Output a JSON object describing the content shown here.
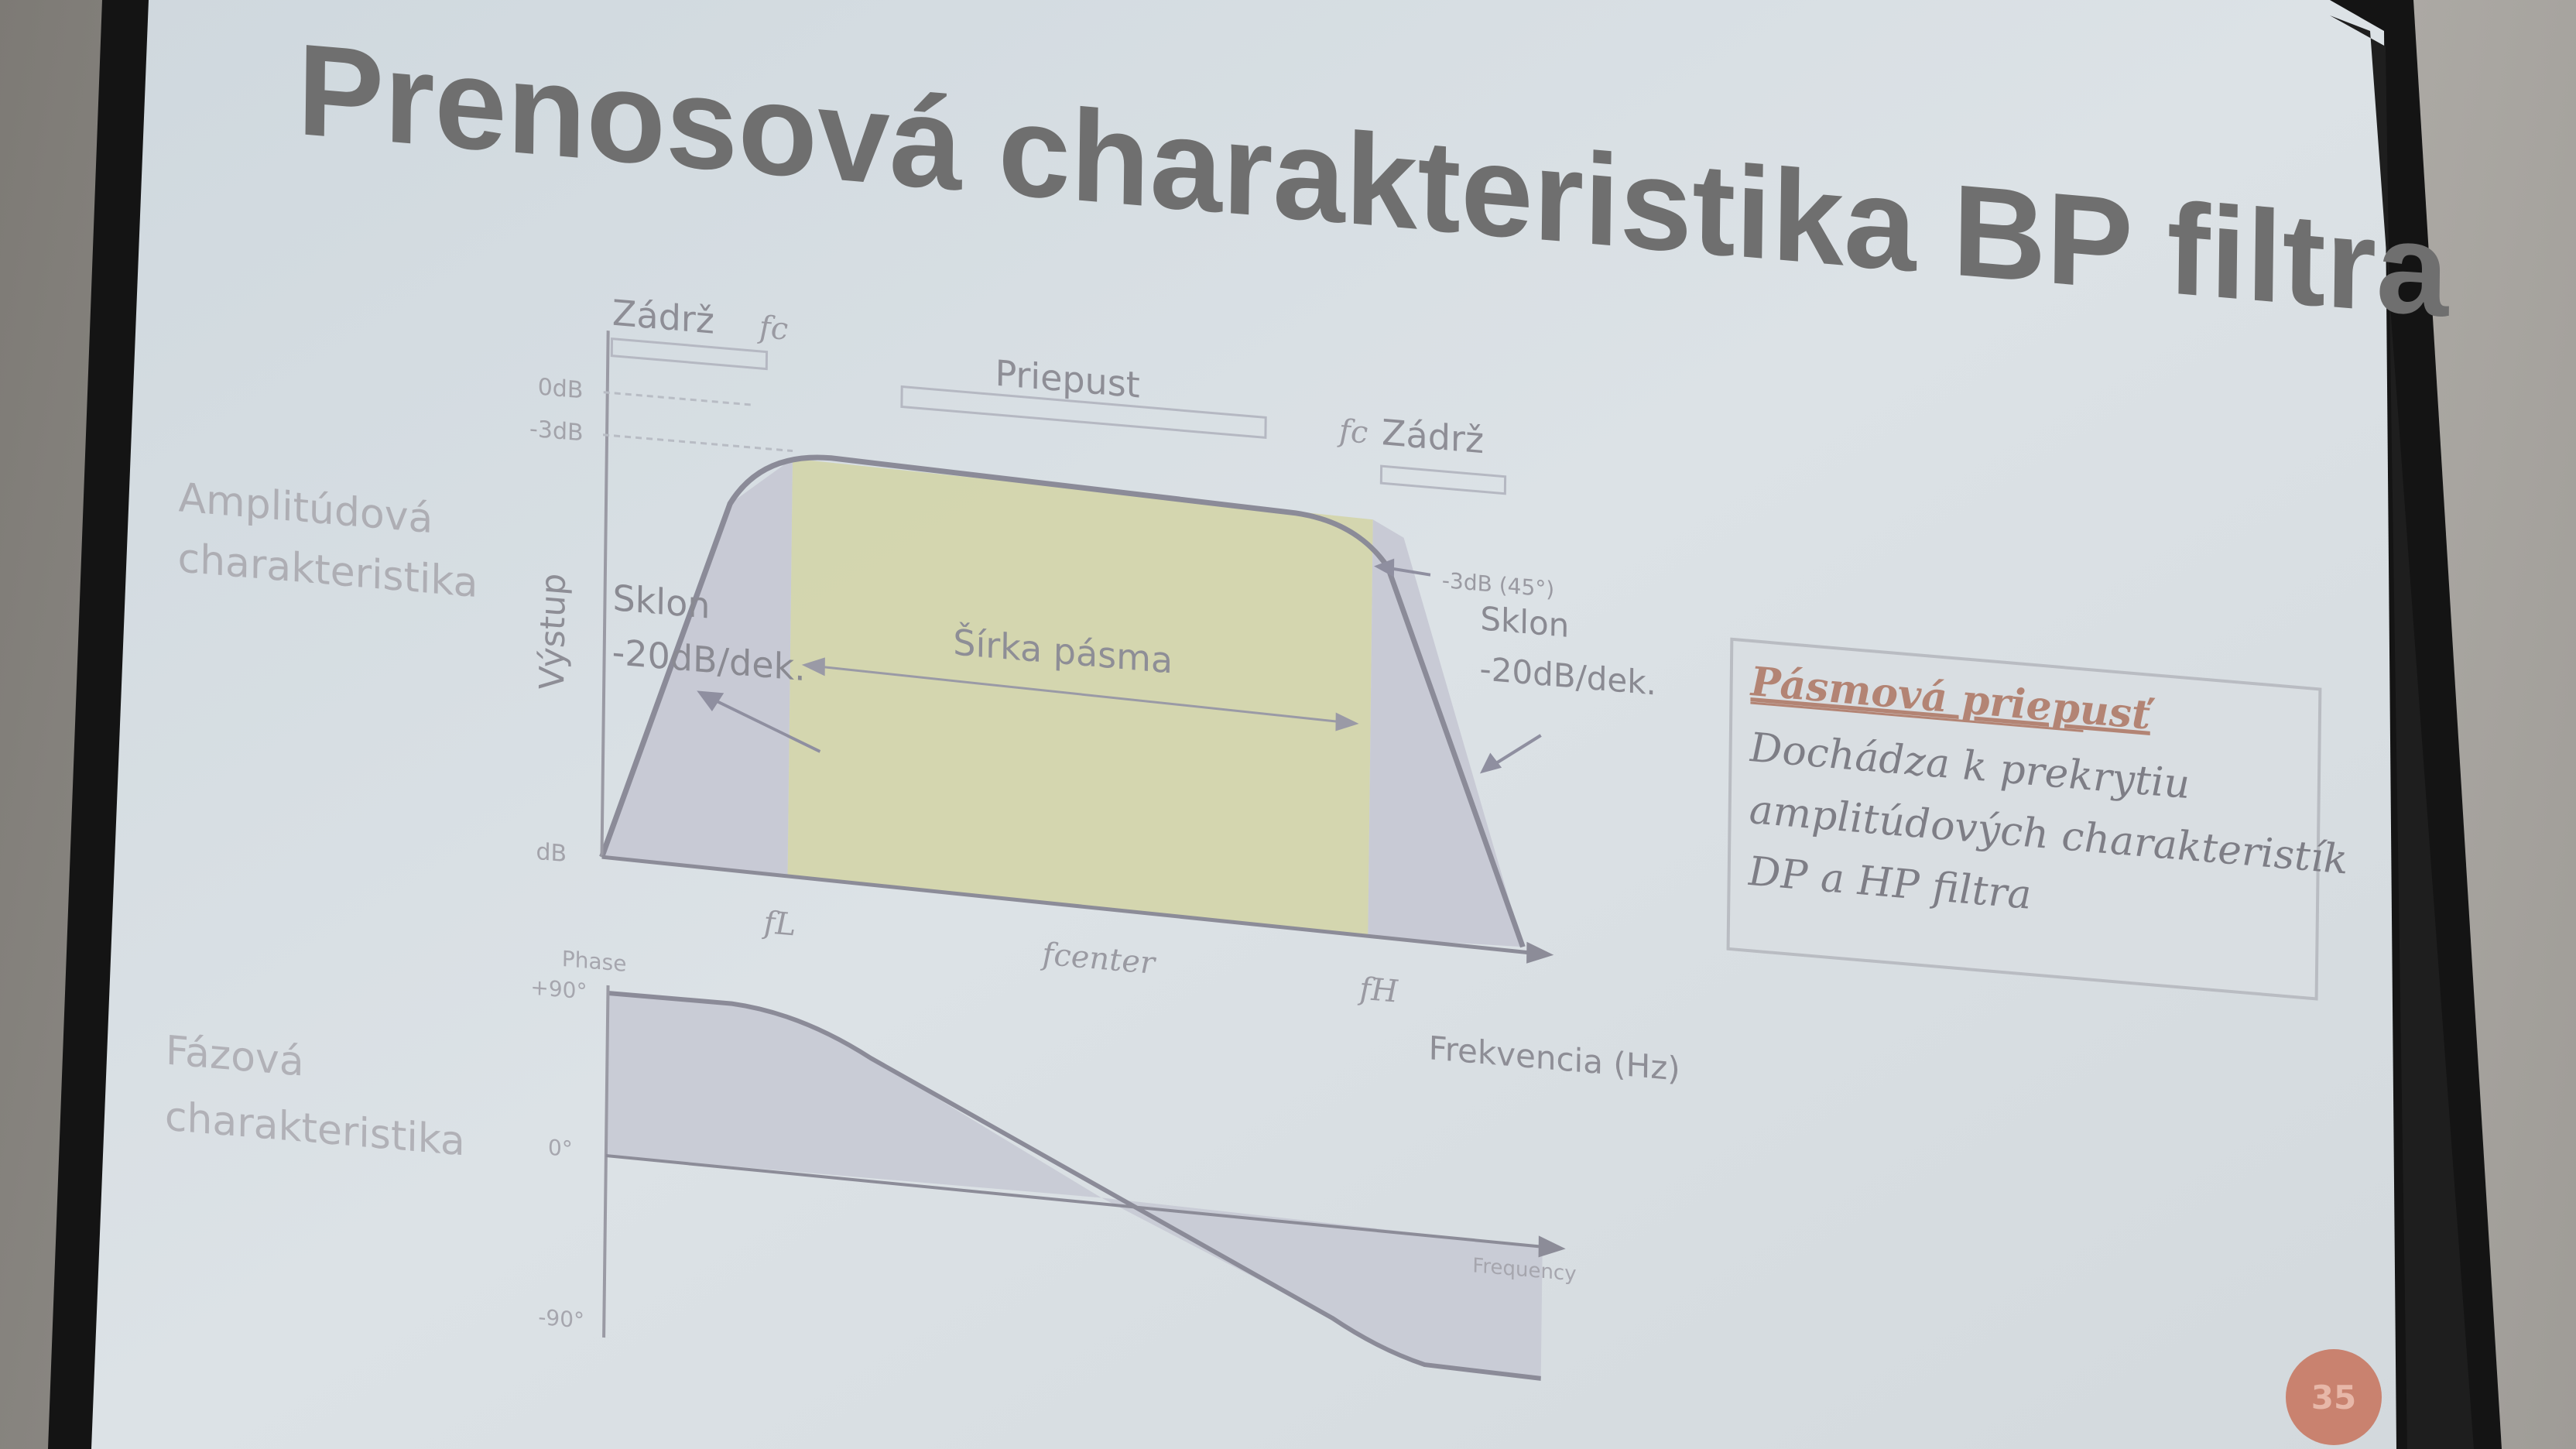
{
  "slide": {
    "title": "Prenosová charakteristika BP filtra",
    "page_number": "35"
  },
  "amplitude_chart": {
    "row_label_line1": "Amplitúdová",
    "row_label_line2": "charakteristika",
    "y_axis_label": "Výstup",
    "x_axis_label": "Frekvencia (Hz)",
    "tick_0db": "0dB",
    "tick_minus3db": "-3dB",
    "tick_bottom": "dB",
    "stop_band_left": "Zádrž",
    "stop_band_right": "Zádrž",
    "pass_band": "Priepust",
    "fc_left": "fc",
    "fc_right": "fc",
    "bandwidth": "Šírka pásma",
    "slope_left_line1": "Sklon",
    "slope_left_line2": "-20dB/dek.",
    "slope_right_line1": "Sklon",
    "slope_right_line2": "-20dB/dek.",
    "cutoff_marker": "-3dB (45°)",
    "freq_low": "fL",
    "freq_center": "fcenter",
    "freq_high": "fH"
  },
  "phase_chart": {
    "row_label_line1": "Fázová",
    "row_label_line2": "charakteristika",
    "y_axis_label": "Phase",
    "tick_top": "+90°",
    "tick_mid": "0°",
    "tick_bottom": "-90°",
    "x_axis_label": "Frequency"
  },
  "info_box": {
    "heading": "Pásmová priepusť",
    "line1": "Dochádza k prekrytiu",
    "line2": "amplitúdových charakteristík",
    "line3": "DP a HP filtra"
  },
  "colors": {
    "screen": "#d6dde3",
    "screen_frame": "#151515",
    "title": "#6f6f6f",
    "passband_fill": "#d2d4a6",
    "curve": "#8a8a96",
    "info_text": "#7c7c84",
    "info_heading": "#b58376",
    "page_badge": "#c9826f"
  }
}
